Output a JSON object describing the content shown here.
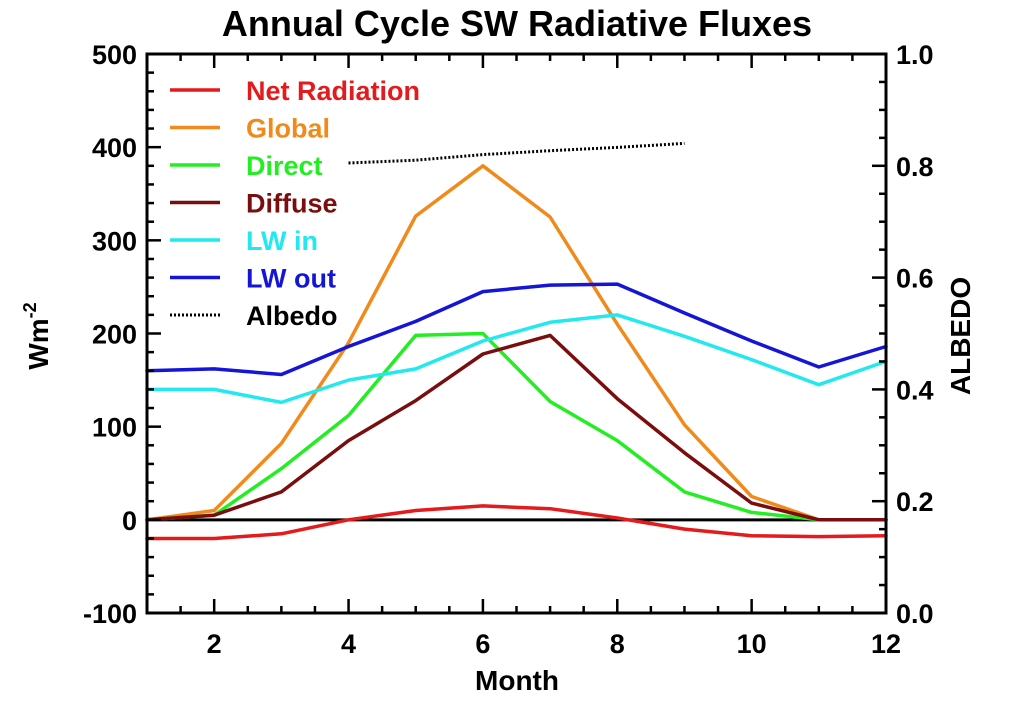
{
  "chart_data": {
    "type": "line",
    "title": "Annual Cycle SW Radiative Fluxes",
    "xlabel": "Month",
    "ylabel_base": "Wm",
    "ylabel_superscript": "-2",
    "y2label": "ALBEDO",
    "xlim": [
      1,
      12
    ],
    "ylim": [
      -100,
      500
    ],
    "y2lim": [
      0.0,
      1.0
    ],
    "xticks": [
      2,
      4,
      6,
      8,
      10,
      12
    ],
    "xtick_labels": [
      "2",
      "4",
      "6",
      "8",
      "10",
      "12"
    ],
    "yticks": [
      -100,
      0,
      100,
      200,
      300,
      400,
      500
    ],
    "ytick_labels": [
      "-100",
      "0",
      "100",
      "200",
      "300",
      "400",
      "500"
    ],
    "y2ticks": [
      0.0,
      0.2,
      0.4,
      0.6,
      0.8,
      1.0
    ],
    "y2tick_labels": [
      "0.0",
      "0.2",
      "0.4",
      "0.6",
      "0.8",
      "1.0"
    ],
    "zero_line": 0,
    "legend_position": "top-left",
    "grid": false,
    "x": [
      1,
      2,
      3,
      4,
      5,
      6,
      7,
      8,
      9,
      10,
      11,
      12
    ],
    "series": [
      {
        "name": "Net Radiation",
        "color": "#e41a1c",
        "axis": "left",
        "style": "solid",
        "values": [
          -20,
          -20,
          -15,
          0,
          10,
          15,
          12,
          2,
          -10,
          -17,
          -18,
          -17
        ]
      },
      {
        "name": "Global",
        "color": "#f28a1b",
        "axis": "left",
        "style": "solid",
        "values": [
          0,
          10,
          82,
          190,
          326,
          380,
          325,
          210,
          102,
          25,
          0,
          0
        ]
      },
      {
        "name": "Direct",
        "color": "#22ee22",
        "axis": "left",
        "style": "solid",
        "values": [
          0,
          5,
          55,
          112,
          198,
          200,
          127,
          85,
          30,
          8,
          0,
          0
        ]
      },
      {
        "name": "Diffuse",
        "color": "#7a0e0e",
        "axis": "left",
        "style": "solid",
        "values": [
          0,
          5,
          30,
          85,
          128,
          178,
          198,
          130,
          72,
          18,
          0,
          0
        ]
      },
      {
        "name": "LW in",
        "color": "#22e8f0",
        "axis": "left",
        "style": "solid",
        "values": [
          140,
          140,
          126,
          150,
          162,
          192,
          212,
          220,
          197,
          172,
          145,
          170
        ]
      },
      {
        "name": "LW out",
        "color": "#1515d8",
        "axis": "left",
        "style": "solid",
        "values": [
          160,
          162,
          156,
          186,
          213,
          245,
          252,
          253,
          222,
          192,
          164,
          186
        ]
      },
      {
        "name": "Albedo",
        "color": "#000000",
        "axis": "right",
        "style": "dotted",
        "x": [
          4,
          5,
          6,
          7,
          8,
          9
        ],
        "values": [
          0.805,
          0.81,
          0.82,
          0.827,
          0.833,
          0.84
        ]
      }
    ]
  }
}
